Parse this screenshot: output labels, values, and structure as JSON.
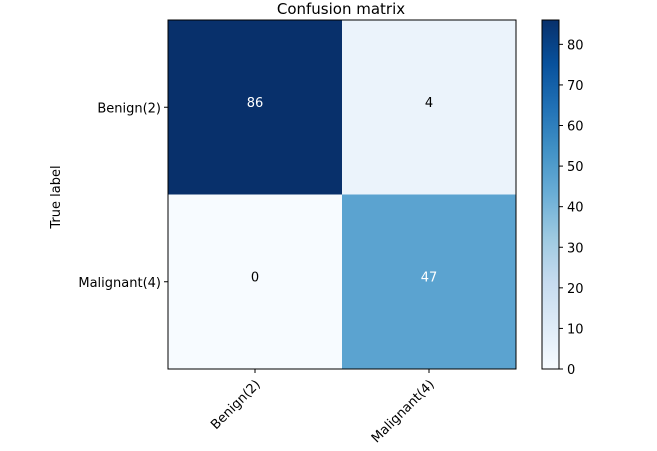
{
  "chart_data": {
    "type": "heatmap",
    "title": "Confusion matrix",
    "ylabel": "True label",
    "xlabel": "",
    "row_labels": [
      "Benign(2)",
      "Malignant(4)"
    ],
    "col_labels": [
      "Benign(2)",
      "Malignant(4)"
    ],
    "values": [
      [
        86,
        4
      ],
      [
        0,
        47
      ]
    ],
    "colormap": "Blues",
    "colorbar": {
      "range": [
        0,
        86
      ],
      "ticks": [
        0,
        10,
        20,
        30,
        40,
        50,
        60,
        70,
        80
      ]
    },
    "cell_text_colors": {
      "dark": "#ffffff",
      "light": "#000000"
    },
    "cell_colors": [
      [
        "#08306b",
        "#ebf3fb"
      ],
      [
        "#f7fbff",
        "#5ba3d0"
      ]
    ]
  }
}
